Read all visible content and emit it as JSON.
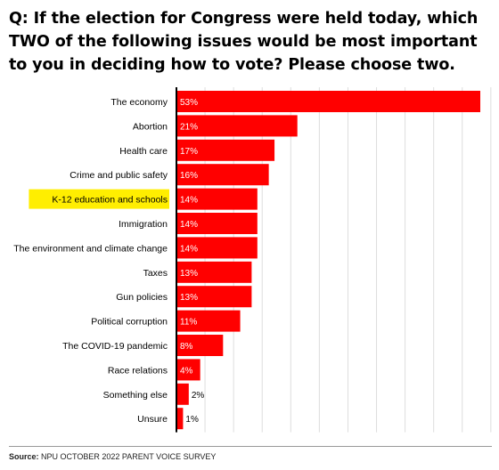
{
  "question": "Q: If the election for Congress were held today, which TWO of the following issues would be most important to you in deciding how to vote? Please choose two.",
  "source_label": "Source:",
  "source_text": "NPU OCTOBER 2022 PARENT VOICE SURVEY",
  "colors": {
    "bar": "#ff0000",
    "highlight": "#ffee00",
    "grid": "#dddddd",
    "axis": "#000000"
  },
  "chart_data": {
    "type": "bar",
    "orientation": "horizontal",
    "title": "",
    "xlabel": "",
    "ylabel": "",
    "xlim": [
      0,
      55
    ],
    "grid": true,
    "categories": [
      "The economy",
      "Abortion",
      "Health care",
      "Crime and public safety",
      "K-12 education and schools",
      "Immigration",
      "The environment and climate change",
      "Taxes",
      "Gun policies",
      "Political corruption",
      "The COVID-19 pandemic",
      "Race relations",
      "Something else",
      "Unsure"
    ],
    "values": [
      53,
      21,
      17,
      16,
      14,
      14,
      14,
      13,
      13,
      11,
      8,
      4,
      2,
      1
    ],
    "data_labels": [
      "53%",
      "21%",
      "17%",
      "16%",
      "14%",
      "14%",
      "14%",
      "13%",
      "13%",
      "11%",
      "8%",
      "4%",
      "2%",
      "1%"
    ],
    "highlighted_category": "K-12 education and schools"
  }
}
